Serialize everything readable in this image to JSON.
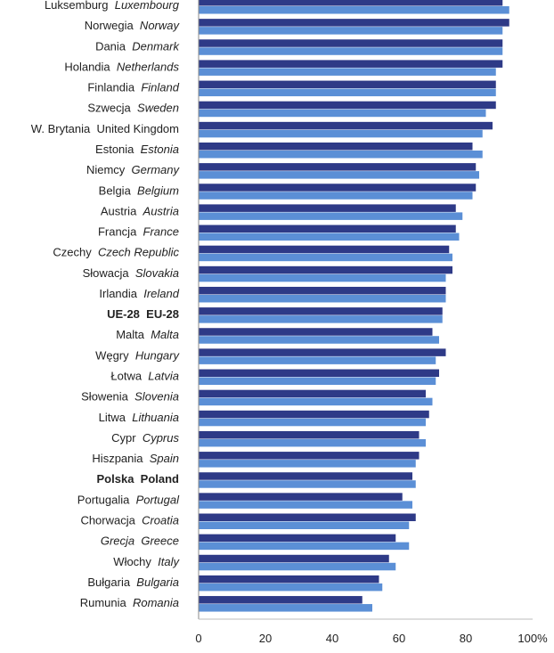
{
  "chart_data": {
    "type": "bar",
    "orientation": "horizontal",
    "categories": [
      {
        "pl": "Luksemburg",
        "en": "Luxembourg",
        "bold": false
      },
      {
        "pl": "Norwegia",
        "en": "Norway",
        "bold": false
      },
      {
        "pl": "Dania",
        "en": "Denmark",
        "bold": false
      },
      {
        "pl": "Holandia",
        "en": "Netherlands",
        "bold": false
      },
      {
        "pl": "Finlandia",
        "en": "Finland",
        "bold": false
      },
      {
        "pl": "Szwecja",
        "en": "Sweden",
        "bold": false
      },
      {
        "pl": "W. Brytania",
        "en": "United Kingdom",
        "bold": false,
        "en_upright": true
      },
      {
        "pl": "Estonia",
        "en": "Estonia",
        "bold": false
      },
      {
        "pl": "Niemcy",
        "en": "Germany",
        "bold": false
      },
      {
        "pl": "Belgia",
        "en": "Belgium",
        "bold": false
      },
      {
        "pl": "Austria",
        "en": "Austria",
        "bold": false
      },
      {
        "pl": "Francja",
        "en": "France",
        "bold": false
      },
      {
        "pl": "Czechy",
        "en": "Czech Republic",
        "bold": false
      },
      {
        "pl": "Słowacja",
        "en": "Slovakia",
        "bold": false
      },
      {
        "pl": "Irlandia",
        "en": "Ireland",
        "bold": false
      },
      {
        "pl": "UE-28",
        "en": "EU-28",
        "bold": true,
        "en_upright": true
      },
      {
        "pl": "Malta",
        "en": "Malta",
        "bold": false
      },
      {
        "pl": "Węgry",
        "en": "Hungary",
        "bold": false
      },
      {
        "pl": "Łotwa",
        "en": "Latvia",
        "bold": false
      },
      {
        "pl": "Słowenia",
        "en": "Slovenia",
        "bold": false
      },
      {
        "pl": "Litwa",
        "en": "Lithuania",
        "bold": false
      },
      {
        "pl": "Cypr",
        "en": "Cyprus",
        "bold": false
      },
      {
        "pl": "Hiszpania",
        "en": "Spain",
        "bold": false
      },
      {
        "pl": "Polska",
        "en": "Poland",
        "bold": true,
        "en_upright": true
      },
      {
        "pl": "Portugalia",
        "en": "Portugal",
        "bold": false
      },
      {
        "pl": "Chorwacja",
        "en": "Croatia",
        "bold": false
      },
      {
        "pl": "Grecja",
        "en": "Greece",
        "bold": false,
        "pl_italic": true
      },
      {
        "pl": "Włochy",
        "en": "Italy",
        "bold": false
      },
      {
        "pl": "Bułgaria",
        "en": "Bulgaria",
        "bold": false
      },
      {
        "pl": "Rumunia",
        "en": "Romania",
        "bold": false
      }
    ],
    "series": [
      {
        "color": "#2E3A87",
        "values": [
          91,
          93,
          91,
          91,
          89,
          89,
          88,
          82,
          83,
          83,
          77,
          77,
          75,
          76,
          74,
          73,
          70,
          74,
          72,
          68,
          69,
          66,
          66,
          64,
          61,
          65,
          59,
          57,
          54,
          49
        ]
      },
      {
        "color": "#5B8FD6",
        "values": [
          93,
          91,
          91,
          89,
          89,
          86,
          85,
          85,
          84,
          82,
          79,
          78,
          76,
          74,
          74,
          73,
          72,
          71,
          71,
          70,
          68,
          68,
          65,
          65,
          64,
          63,
          63,
          59,
          55,
          52
        ]
      }
    ],
    "x_ticks": [
      "0",
      "20",
      "40",
      "60",
      "80",
      "100%"
    ],
    "xlim": [
      0,
      100
    ],
    "grid": false,
    "legend": "none",
    "title": "",
    "xlabel": "",
    "ylabel": ""
  }
}
